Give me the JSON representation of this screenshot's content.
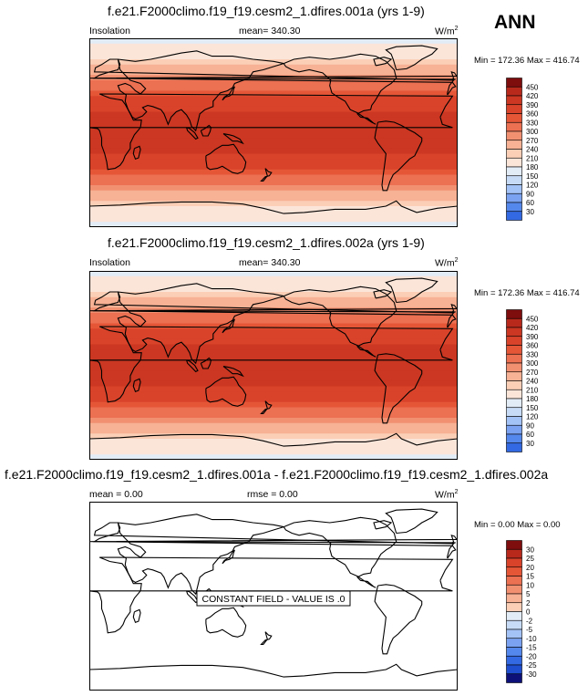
{
  "season": "ANN",
  "units_base": "W/m",
  "units_exp": "2",
  "colors": {
    "sequential": [
      "#0d1079",
      "#142ab0",
      "#1f4ed0",
      "#3369e2",
      "#5588ec",
      "#7ba2f1",
      "#a3c2f6",
      "#c7dbf6",
      "#e2ecf7",
      "#fbe5d9",
      "#fbcfb6",
      "#f7b194",
      "#f19071",
      "#ec7052",
      "#e55637",
      "#d9432a",
      "#cb3722",
      "#b8291c",
      "#7e0d0e"
    ],
    "land_outline": "#000000"
  },
  "chart_data": [
    {
      "type": "heatmap",
      "title": "f.e21.F2000climo.f19_f19.cesm2_1.dfires.001a (yrs 1-9)",
      "variable": "Insolation",
      "mean_label": "mean= 340.30",
      "minmax_label": "Min = 172.36 Max = 416.74",
      "colorbar_ticks": [
        "450",
        "420",
        "390",
        "360",
        "330",
        "300",
        "270",
        "240",
        "210",
        "180",
        "150",
        "120",
        "90",
        "60",
        "30"
      ],
      "field": "zonal",
      "lat_bands": [
        {
          "lat": 90,
          "value": 175
        },
        {
          "lat": 75,
          "value": 200
        },
        {
          "lat": 60,
          "value": 255
        },
        {
          "lat": 45,
          "value": 315
        },
        {
          "lat": 30,
          "value": 370
        },
        {
          "lat": 15,
          "value": 405
        },
        {
          "lat": 0,
          "value": 416
        },
        {
          "lat": -15,
          "value": 405
        },
        {
          "lat": -30,
          "value": 370
        },
        {
          "lat": -45,
          "value": 315
        },
        {
          "lat": -60,
          "value": 255
        },
        {
          "lat": -75,
          "value": 200
        },
        {
          "lat": -90,
          "value": 175
        }
      ]
    },
    {
      "type": "heatmap",
      "title": "f.e21.F2000climo.f19_f19.cesm2_1.dfires.002a (yrs 1-9)",
      "variable": "Insolation",
      "mean_label": "mean= 340.30",
      "minmax_label": "Min = 172.36 Max = 416.74",
      "colorbar_ticks": [
        "450",
        "420",
        "390",
        "360",
        "330",
        "300",
        "270",
        "240",
        "210",
        "180",
        "150",
        "120",
        "90",
        "60",
        "30"
      ],
      "field": "zonal",
      "lat_bands": [
        {
          "lat": 90,
          "value": 175
        },
        {
          "lat": 75,
          "value": 200
        },
        {
          "lat": 60,
          "value": 255
        },
        {
          "lat": 45,
          "value": 315
        },
        {
          "lat": 30,
          "value": 370
        },
        {
          "lat": 15,
          "value": 405
        },
        {
          "lat": 0,
          "value": 416
        },
        {
          "lat": -15,
          "value": 405
        },
        {
          "lat": -30,
          "value": 370
        },
        {
          "lat": -45,
          "value": 315
        },
        {
          "lat": -60,
          "value": 255
        },
        {
          "lat": -75,
          "value": 200
        },
        {
          "lat": -90,
          "value": 175
        }
      ]
    },
    {
      "type": "heatmap",
      "title": "f.e21.F2000climo.f19_f19.cesm2_1.dfires.001a - f.e21.F2000climo.f19_f19.cesm2_1.dfires.002a",
      "mean_label": "mean =   0.00",
      "rmse_label": "rmse =   0.00",
      "minmax_label": "Min =  0.00 Max =  0.00",
      "colorbar_ticks": [
        "30",
        "25",
        "20",
        "15",
        "10",
        "5",
        "2",
        "0",
        "-2",
        "-5",
        "-10",
        "-15",
        "-20",
        "-25",
        "-30"
      ],
      "field": "constant",
      "constant_value": 0,
      "annotation": "CONSTANT FIELD - VALUE IS .0"
    }
  ]
}
